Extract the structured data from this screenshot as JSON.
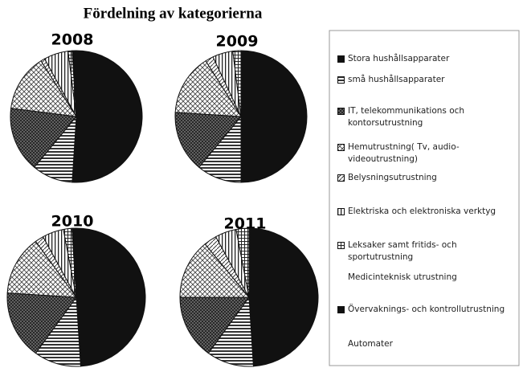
{
  "title": "Fördelning av kategorierna",
  "legend": {
    "categories": [
      "Stora hushållsapparater",
      "små hushållsapparater",
      "IT, telekommunikations och kontorsutrustning",
      "Hemutrustning( Tv, audio-videoutrustning)",
      "Belysningsutrustning",
      "Elektriska och elektroniska verktyg",
      "Leksaker samt fritids- och sportutrustning",
      "Medicinteknisk utrustning",
      "Övervaknings- och kontrollutrustning",
      "Automater"
    ],
    "patterns": [
      "black",
      "hlines",
      "crossdark",
      "cross",
      "diag",
      "vlines",
      "grid",
      "none",
      "black",
      "none"
    ]
  },
  "chart_data": [
    {
      "type": "pie",
      "title": "2008",
      "values": [
        51,
        10,
        16,
        14,
        1,
        6,
        1,
        0,
        1,
        0
      ]
    },
    {
      "type": "pie",
      "title": "2009",
      "values": [
        50,
        11,
        15,
        15,
        2,
        5,
        2,
        0,
        0,
        0
      ]
    },
    {
      "type": "pie",
      "title": "2010",
      "values": [
        49,
        11,
        16,
        14,
        2,
        5,
        2,
        0,
        1,
        0
      ]
    },
    {
      "type": "pie",
      "title": "2011",
      "values": [
        49,
        11,
        15,
        14,
        3,
        5,
        3,
        0,
        0,
        0
      ]
    }
  ]
}
